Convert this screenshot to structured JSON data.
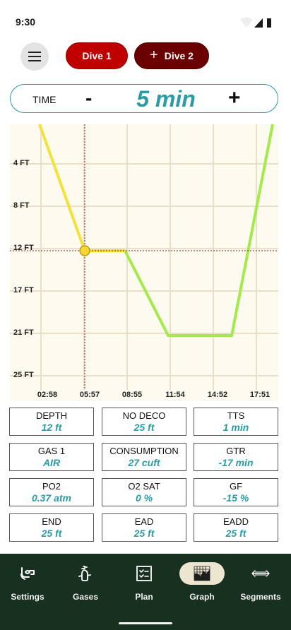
{
  "status": {
    "time": "9:30"
  },
  "header": {
    "menu_icon": "hamburger-menu-icon",
    "dive1_label": "Dive 1",
    "dive2_plus": "+",
    "dive2_label": "Dive 2"
  },
  "time_control": {
    "label": "TIME",
    "minus": "-",
    "value": "5 min",
    "plus": "+"
  },
  "chart_data": {
    "type": "line",
    "y_tick_labels": [
      "4 FT",
      "8 FT",
      "12 FT",
      "17 FT",
      "21 FT",
      "25 FT"
    ],
    "y_tick_values": [
      4,
      8,
      12,
      17,
      21,
      25
    ],
    "x_tick_labels": [
      "02:58",
      "05:57",
      "08:55",
      "11:54",
      "14:52",
      "17:51"
    ],
    "x_tick_values": [
      178,
      357,
      535,
      714,
      892,
      1071
    ],
    "y_axis": "depth in feet, increasing downward",
    "x_axis": "elapsed dive time mm:ss",
    "colors": {
      "past": "#f2e23a",
      "future": "#a4ea4a",
      "cursor": "#8b1a1a",
      "marker": "#f5d733",
      "grid": "#e8e1c8"
    },
    "series": [
      {
        "values_x": [
          0,
          300,
          360,
          480,
          660,
          960,
          1100
        ],
        "values_y": [
          0,
          12,
          12,
          12,
          21,
          21,
          0
        ]
      }
    ],
    "cursor": {
      "x": 300,
      "y": 12
    },
    "xlim": [
      0,
      1100
    ],
    "ylim": [
      0,
      25
    ],
    "grid": true
  },
  "stats": [
    {
      "label": "DEPTH",
      "value": "12 ft"
    },
    {
      "label": "NO DECO",
      "value": "25 ft"
    },
    {
      "label": "TTS",
      "value": "1 min"
    },
    {
      "label": "GAS 1",
      "value": "AIR"
    },
    {
      "label": "CONSUMPTION",
      "value": "27 cuft"
    },
    {
      "label": "GTR",
      "value": "-17 min"
    },
    {
      "label": "PO2",
      "value": "0.37 atm"
    },
    {
      "label": "O2 SAT",
      "value": "0 %"
    },
    {
      "label": "GF",
      "value": "-15 %"
    },
    {
      "label": "END",
      "value": "25 ft"
    },
    {
      "label": "EAD",
      "value": "25 ft"
    },
    {
      "label": "EADD",
      "value": "25 ft"
    }
  ],
  "nav": [
    {
      "label": "Settings",
      "icon": "snorkel-mask-icon",
      "active": false
    },
    {
      "label": "Gases",
      "icon": "gas-tank-icon",
      "active": false
    },
    {
      "label": "Plan",
      "icon": "checklist-icon",
      "active": false
    },
    {
      "label": "Graph",
      "icon": "graph-grid-icon",
      "active": true
    },
    {
      "label": "Segments",
      "icon": "left-right-arrow-icon",
      "active": false
    }
  ]
}
